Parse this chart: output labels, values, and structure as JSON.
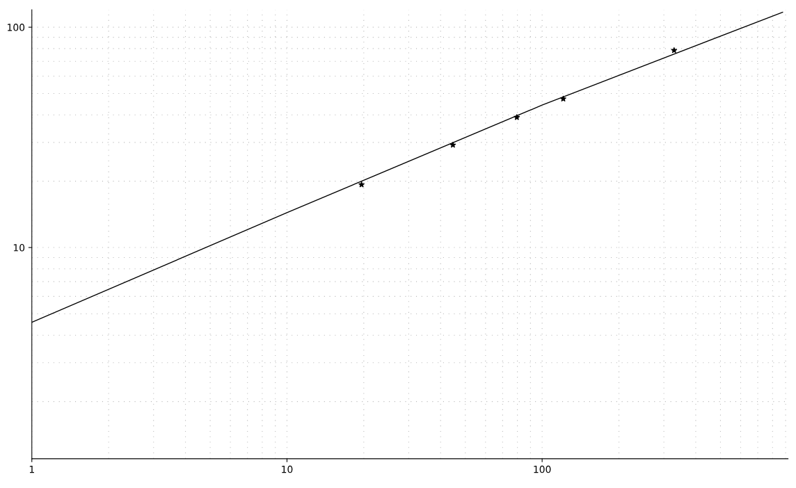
{
  "chart_data": {
    "type": "scatter",
    "log": "xy",
    "grid": true,
    "xlim": [
      1,
      920
    ],
    "ylim": [
      1.1,
      120
    ],
    "xticks": [
      1,
      10,
      100
    ],
    "yticks": [
      10,
      100
    ],
    "series": [
      {
        "type": "line",
        "color": "#000000",
        "marker": "none",
        "x": [
          1,
          10,
          100,
          876
        ],
        "values": [
          4.58,
          14.4,
          44.3,
          117
        ]
      },
      {
        "color": "#000000",
        "marker": "star",
        "x": [
          19.6,
          44.7,
          79.6,
          121,
          329
        ],
        "values": [
          19.3,
          29.2,
          39,
          47.3,
          78.5
        ]
      }
    ]
  }
}
